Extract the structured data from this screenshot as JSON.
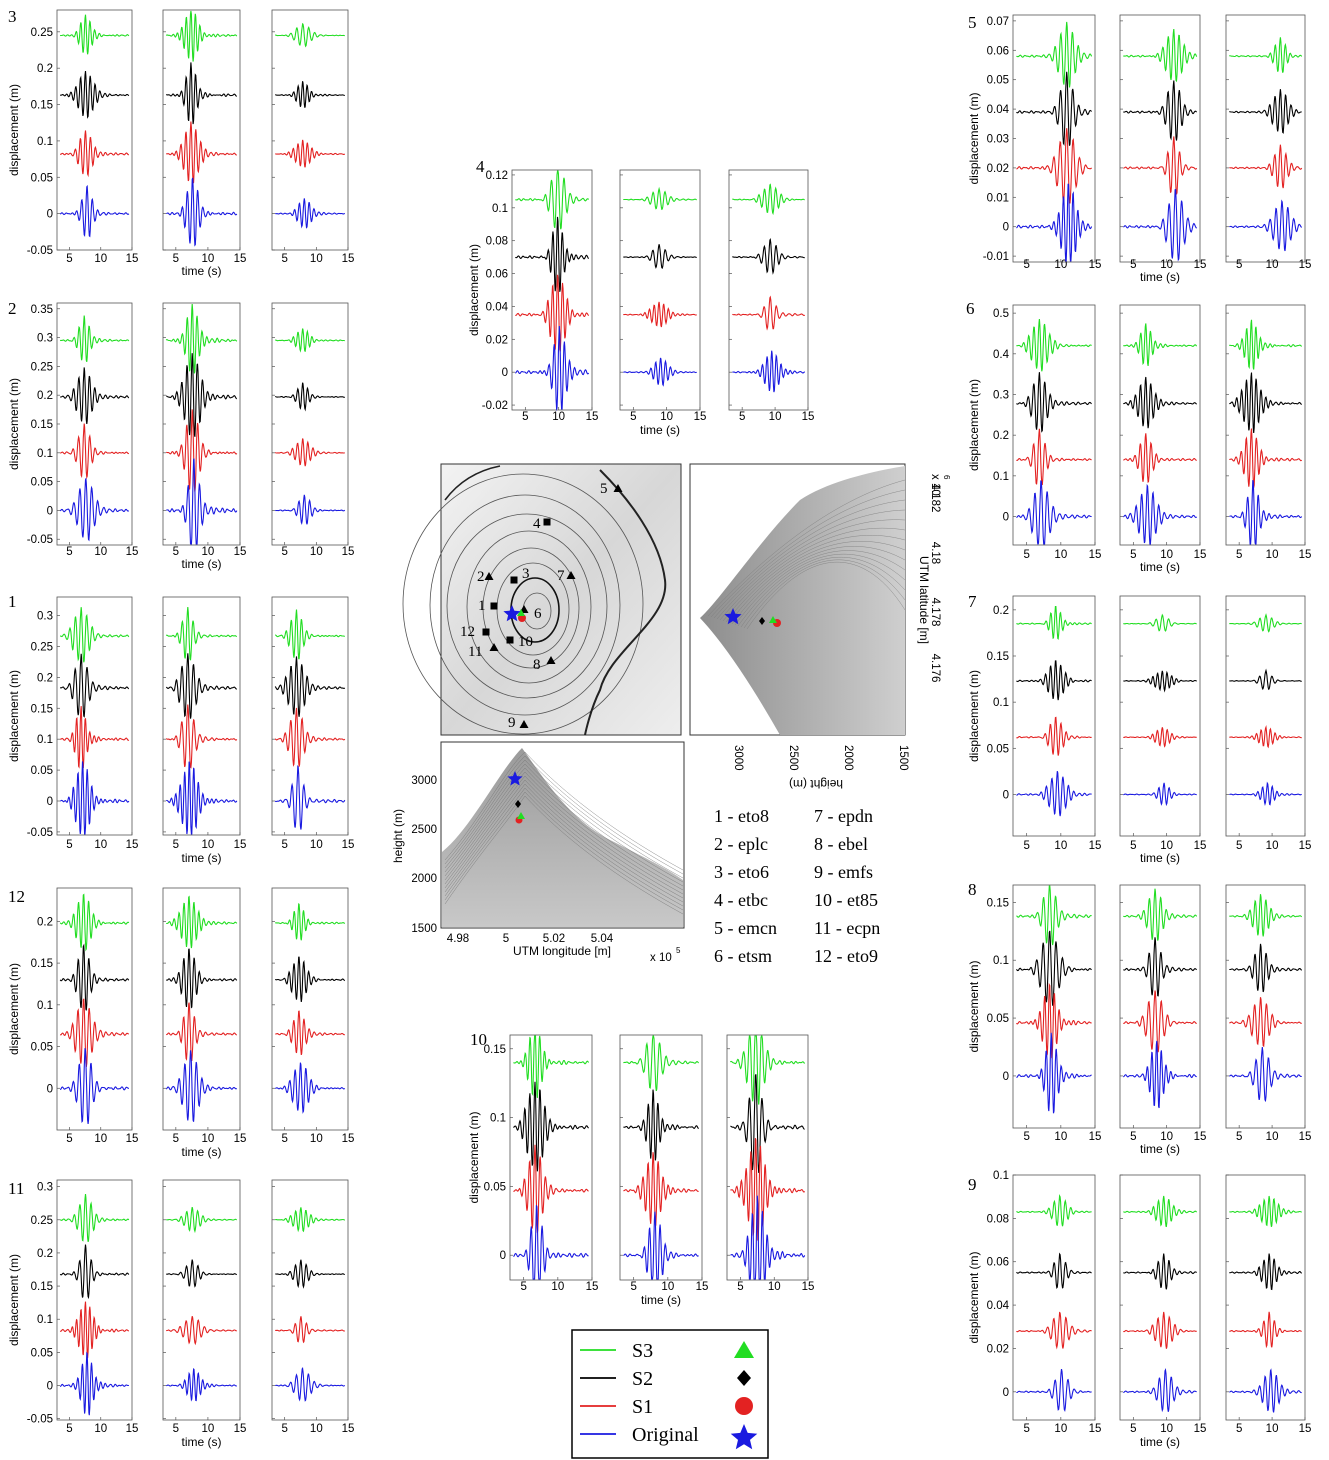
{
  "figure": {
    "palette": {
      "S3": "#22dd22",
      "S2": "#000000",
      "S1": "#e32222",
      "Original": "#1a1ae0"
    },
    "common": {
      "x_label": "time (s)",
      "y_label": "displacement (m)",
      "x_ticks": [
        "5",
        "10",
        "15"
      ]
    },
    "legend": [
      {
        "key": "S3",
        "label": "S3",
        "marker": "triangle"
      },
      {
        "key": "S2",
        "label": "S2",
        "marker": "diamond"
      },
      {
        "key": "S1",
        "label": "S1",
        "marker": "circle"
      },
      {
        "key": "Original",
        "label": "Original",
        "marker": "star"
      }
    ],
    "station_list": [
      "1 - eto8",
      "2 - eplc",
      "3 - eto6",
      "4 - etbc",
      "5 - emcn",
      "6 - etsm",
      "7 - epdn",
      "8 - ebel",
      "9 - emfs",
      "10 - et85",
      "11 - ecpn",
      "12 - eto9"
    ],
    "map": {
      "station_labels": [
        "1",
        "2",
        "3",
        "4",
        "5",
        "6",
        "7",
        "8",
        "9",
        "10",
        "11",
        "12"
      ],
      "station_markers": {
        "triangle": [
          "2",
          "5",
          "6",
          "7",
          "8",
          "9",
          "11"
        ],
        "square": [
          "1",
          "3",
          "4",
          "10",
          "12"
        ]
      },
      "side_view_ns": {
        "x_label": "height (m)",
        "y_label": "UTM latitude [m]",
        "x_ticks": [
          "3000",
          "2500",
          "2000",
          "1500"
        ],
        "y_ticks": [
          "4.182",
          "4.18",
          "4.178",
          "4.176"
        ],
        "y_multiplier": "x 10",
        "y_multiplier_exp": "6"
      },
      "side_view_ew": {
        "x_label": "UTM longitude [m]",
        "y_label": "height (m)",
        "x_ticks": [
          "4.98",
          "5",
          "5.02",
          "5.04"
        ],
        "y_ticks": [
          "3000",
          "2500",
          "2000",
          "1500"
        ],
        "x_multiplier": "x 10",
        "x_multiplier_exp": "5"
      }
    }
  },
  "chart_data": [
    {
      "type": "line",
      "station": "3",
      "x_range": [
        3,
        15
      ],
      "ylim": [
        -0.05,
        0.28
      ],
      "y_ticks": [
        "0.25",
        "0.2",
        "0.15",
        "0.1",
        "0.05",
        "0",
        "-0.05"
      ],
      "y_tick_values": [
        0.25,
        0.2,
        0.15,
        0.1,
        0.05,
        0,
        -0.05
      ],
      "series_offsets": {
        "S3": 0.245,
        "S2": 0.163,
        "S1": 0.082,
        "Original": 0
      },
      "peak_time_s": [
        7.5,
        7.3,
        7.8
      ],
      "peak_amplitude": [
        0.03,
        0.04,
        0.017
      ]
    },
    {
      "type": "line",
      "station": "2",
      "x_range": [
        3,
        15
      ],
      "ylim": [
        -0.06,
        0.36
      ],
      "y_ticks": [
        "0.35",
        "0.3",
        "0.25",
        "0.2",
        "0.15",
        "0.1",
        "0.05",
        "0",
        "-0.05"
      ],
      "y_tick_values": [
        0.35,
        0.3,
        0.25,
        0.2,
        0.15,
        0.1,
        0.05,
        0,
        -0.05
      ],
      "series_offsets": {
        "S3": 0.295,
        "S2": 0.197,
        "S1": 0.1,
        "Original": 0
      },
      "peak_time_s": [
        7.3,
        7.5,
        7.8
      ],
      "peak_amplitude": [
        0.045,
        0.07,
        0.022
      ]
    },
    {
      "type": "line",
      "station": "1",
      "x_range": [
        3,
        15
      ],
      "ylim": [
        -0.055,
        0.33
      ],
      "y_ticks": [
        "0.3",
        "0.25",
        "0.2",
        "0.15",
        "0.1",
        "0.05",
        "0",
        "-0.05"
      ],
      "y_tick_values": [
        0.3,
        0.25,
        0.2,
        0.15,
        0.1,
        0.05,
        0,
        -0.05
      ],
      "series_offsets": {
        "S3": 0.267,
        "S2": 0.183,
        "S1": 0.1,
        "Original": 0
      },
      "peak_time_s": [
        6.8,
        6.8,
        6.8
      ],
      "peak_amplitude": [
        0.05,
        0.05,
        0.045
      ]
    },
    {
      "type": "line",
      "station": "12",
      "x_range": [
        3,
        15
      ],
      "ylim": [
        -0.05,
        0.24
      ],
      "y_ticks": [
        "0.2",
        "0.15",
        "0.1",
        "0.05",
        "0"
      ],
      "y_tick_values": [
        0.2,
        0.15,
        0.1,
        0.05,
        0
      ],
      "series_offsets": {
        "S3": 0.198,
        "S2": 0.13,
        "S1": 0.065,
        "Original": 0
      },
      "peak_time_s": [
        7.2,
        7,
        7.2
      ],
      "peak_amplitude": [
        0.038,
        0.035,
        0.025
      ]
    },
    {
      "type": "line",
      "station": "11",
      "x_range": [
        3,
        15
      ],
      "ylim": [
        -0.052,
        0.31
      ],
      "y_ticks": [
        "0.3",
        "0.25",
        "0.2",
        "0.15",
        "0.1",
        "0.05",
        "0",
        "-0.05"
      ],
      "y_tick_values": [
        0.3,
        0.25,
        0.2,
        0.15,
        0.1,
        0.05,
        0,
        -0.05
      ],
      "series_offsets": {
        "S3": 0.25,
        "S2": 0.168,
        "S1": 0.083,
        "Original": 0
      },
      "peak_time_s": [
        7.5,
        7.5,
        7.5
      ],
      "peak_amplitude": [
        0.04,
        0.02,
        0.02
      ]
    },
    {
      "type": "line",
      "station": "4",
      "x_range": [
        3,
        15
      ],
      "ylim": [
        -0.023,
        0.123
      ],
      "y_ticks": [
        "0.12",
        "0.1",
        "0.08",
        "0.06",
        "0.04",
        "0.02",
        "0",
        "-0.02"
      ],
      "y_tick_values": [
        0.12,
        0.1,
        0.08,
        0.06,
        0.04,
        0.02,
        0,
        -0.02
      ],
      "series_offsets": {
        "S3": 0.105,
        "S2": 0.07,
        "S1": 0.035,
        "Original": 0
      },
      "peak_time_s": [
        9.8,
        8.8,
        9.2
      ],
      "peak_amplitude": [
        0.022,
        0.007,
        0.01
      ]
    },
    {
      "type": "line",
      "station": "10",
      "x_range": [
        3,
        15
      ],
      "ylim": [
        -0.018,
        0.16
      ],
      "y_ticks": [
        "0.15",
        "0.1",
        "0.05",
        "0"
      ],
      "y_tick_values": [
        0.15,
        0.1,
        0.05,
        0
      ],
      "series_offsets": {
        "S3": 0.14,
        "S2": 0.093,
        "S1": 0.047,
        "Original": 0
      },
      "peak_time_s": [
        6.6,
        7.8,
        7.2
      ],
      "peak_amplitude": [
        0.03,
        0.025,
        0.035
      ]
    },
    {
      "type": "line",
      "station": "5",
      "x_range": [
        3,
        15
      ],
      "ylim": [
        -0.012,
        0.072
      ],
      "y_ticks": [
        "0.07",
        "0.06",
        "0.05",
        "0.04",
        "0.03",
        "0.02",
        "0.01",
        "0",
        "-0.01"
      ],
      "y_tick_values": [
        0.07,
        0.06,
        0.05,
        0.04,
        0.03,
        0.02,
        0.01,
        0,
        -0.01
      ],
      "series_offsets": {
        "S3": 0.058,
        "S2": 0.039,
        "S1": 0.02,
        "Original": 0
      },
      "peak_time_s": [
        10.8,
        11,
        11.2
      ],
      "peak_amplitude": [
        0.012,
        0.01,
        0.007
      ]
    },
    {
      "type": "line",
      "station": "6",
      "x_range": [
        3,
        15
      ],
      "ylim": [
        -0.07,
        0.52
      ],
      "y_ticks": [
        "0.5",
        "0.4",
        "0.3",
        "0.2",
        "0.1",
        "0"
      ],
      "y_tick_values": [
        0.5,
        0.4,
        0.3,
        0.2,
        0.1,
        0
      ],
      "series_offsets": {
        "S3": 0.42,
        "S2": 0.278,
        "S1": 0.14,
        "Original": 0
      },
      "peak_time_s": [
        6.8,
        6.8,
        6.8
      ],
      "peak_amplitude": [
        0.07,
        0.06,
        0.07
      ]
    },
    {
      "type": "line",
      "station": "7",
      "x_range": [
        3,
        15
      ],
      "ylim": [
        -0.045,
        0.215
      ],
      "y_ticks": [
        "0.2",
        "0.15",
        "0.1",
        "0.05",
        "0"
      ],
      "y_tick_values": [
        0.2,
        0.15,
        0.1,
        0.05,
        0
      ],
      "series_offsets": {
        "S3": 0.185,
        "S2": 0.123,
        "S1": 0.062,
        "Original": 0
      },
      "peak_time_s": [
        9.2,
        9.3,
        9
      ],
      "peak_amplitude": [
        0.02,
        0.01,
        0.01
      ]
    },
    {
      "type": "line",
      "station": "8",
      "x_range": [
        3,
        15
      ],
      "ylim": [
        -0.045,
        0.165
      ],
      "y_ticks": [
        "0.15",
        "0.1",
        "0.05",
        "0"
      ],
      "y_tick_values": [
        0.15,
        0.1,
        0.05,
        0
      ],
      "series_offsets": {
        "S3": 0.138,
        "S2": 0.092,
        "S1": 0.046,
        "Original": 0
      },
      "peak_time_s": [
        8.3,
        8.2,
        8.2
      ],
      "peak_amplitude": [
        0.03,
        0.025,
        0.02
      ]
    },
    {
      "type": "line",
      "station": "9",
      "x_range": [
        3,
        15
      ],
      "ylim": [
        -0.013,
        0.1
      ],
      "y_ticks": [
        "0.1",
        "0.08",
        "0.06",
        "0.04",
        "0.02",
        "0"
      ],
      "y_tick_values": [
        0.1,
        0.08,
        0.06,
        0.04,
        0.02,
        0
      ],
      "series_offsets": {
        "S3": 0.083,
        "S2": 0.055,
        "S1": 0.028,
        "Original": 0
      },
      "peak_time_s": [
        9.8,
        9.5,
        9.5
      ],
      "peak_amplitude": [
        0.008,
        0.008,
        0.008
      ]
    }
  ]
}
